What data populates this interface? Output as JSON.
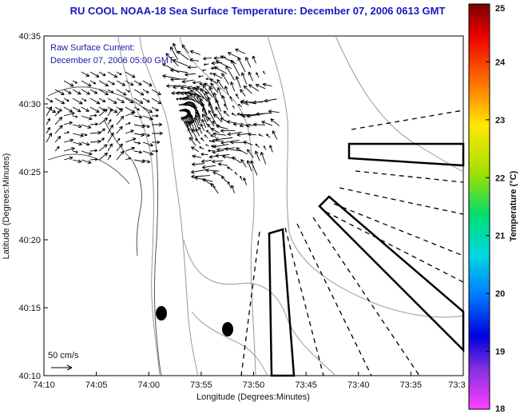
{
  "title": "RU COOL  NOAA-18  Sea Surface Temperature:  December 07, 2006 0613 GMT",
  "annotation": {
    "line1": "Raw Surface Current:",
    "line2": "December 07, 2006 05:00 GMT"
  },
  "scale_label": "50 cm/s",
  "chart_data": {
    "type": "map",
    "xlabel": "Longitude (Degrees:Minutes)",
    "ylabel": "Latitude (Degrees:Minutes)",
    "x_ticks": [
      "74:10",
      "74:05",
      "74:00",
      "73:55",
      "73:50",
      "73:45",
      "73:40",
      "73:35",
      "73:3"
    ],
    "y_ticks": [
      "40:35",
      "40:30",
      "40:25",
      "40:20",
      "40:15",
      "40:10"
    ],
    "colorbar": {
      "label": "Temperature (°C)",
      "ticks": [
        "25",
        "24",
        "23",
        "22",
        "21",
        "20",
        "19",
        "18"
      ],
      "range": [
        18,
        25
      ]
    }
  }
}
